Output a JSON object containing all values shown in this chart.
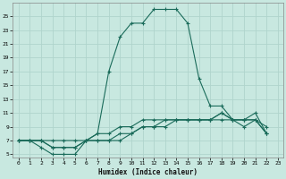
{
  "xlabel": "Humidex (Indice chaleur)",
  "background_color": "#c8e8e0",
  "grid_color": "#b0d4cc",
  "line_color": "#1a6b5a",
  "xlim": [
    -0.5,
    23.5
  ],
  "ylim": [
    4.5,
    27
  ],
  "xticks": [
    0,
    1,
    2,
    3,
    4,
    5,
    6,
    7,
    8,
    9,
    10,
    11,
    12,
    13,
    14,
    15,
    16,
    17,
    18,
    19,
    20,
    21,
    22,
    23
  ],
  "yticks": [
    5,
    7,
    9,
    11,
    13,
    15,
    17,
    19,
    21,
    23,
    25
  ],
  "series": [
    [
      7,
      7,
      6,
      5,
      5,
      5,
      7,
      8,
      17,
      22,
      24,
      24,
      26,
      26,
      26,
      24,
      16,
      12,
      12,
      10,
      9,
      10,
      9
    ],
    [
      7,
      7,
      7,
      6,
      6,
      6,
      7,
      7,
      7,
      7,
      8,
      9,
      9,
      10,
      10,
      10,
      10,
      10,
      10,
      10,
      10,
      10,
      8
    ],
    [
      7,
      7,
      7,
      6,
      6,
      6,
      7,
      7,
      7,
      8,
      8,
      9,
      9,
      9,
      10,
      10,
      10,
      10,
      11,
      10,
      10,
      10,
      8
    ],
    [
      7,
      7,
      7,
      7,
      7,
      7,
      7,
      8,
      8,
      9,
      9,
      10,
      10,
      10,
      10,
      10,
      10,
      10,
      11,
      10,
      10,
      11,
      8
    ]
  ],
  "x_indices": [
    0,
    1,
    2,
    3,
    4,
    5,
    6,
    7,
    8,
    9,
    10,
    11,
    12,
    13,
    14,
    15,
    16,
    17,
    18,
    19,
    20,
    21,
    22
  ]
}
